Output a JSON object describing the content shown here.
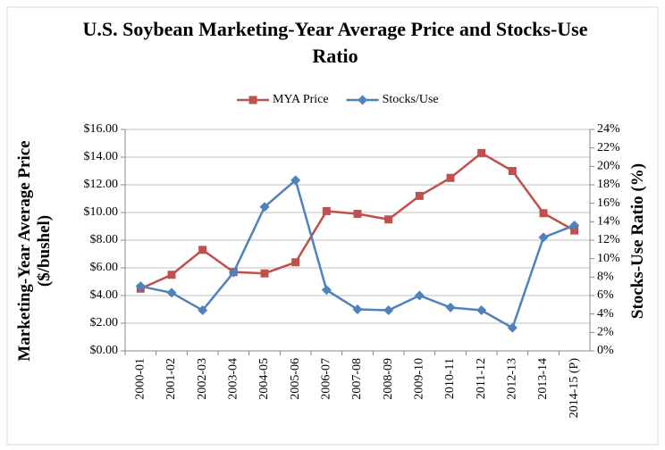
{
  "chart_data": {
    "type": "line",
    "title": "U.S. Soybean Marketing-Year Average Price and Stocks-Use Ratio",
    "y_label": "Marketing-Year Average Price ($/bushel)",
    "y2_label": "Stocks-Use Ratio (%)",
    "categories": [
      "2000-01",
      "2001-02",
      "2002-03",
      "2003-04",
      "2004-05",
      "2005-06",
      "2006-07",
      "2007-08",
      "2008-09",
      "2009-10",
      "2010-11",
      "2011-12",
      "2012-13",
      "2013-14",
      "2014-15 (P)"
    ],
    "series": [
      {
        "name": "MYA Price",
        "color": "#c0504d",
        "marker": "square",
        "values": [
          4.5,
          5.5,
          7.3,
          5.7,
          5.6,
          6.4,
          10.1,
          9.9,
          9.5,
          11.2,
          12.5,
          14.3,
          13.0,
          9.95,
          8.7
        ]
      },
      {
        "name": "Stocks/Use",
        "color": "#4f81bd",
        "marker": "diamond",
        "axis": "y2",
        "values": [
          7.0,
          6.3,
          4.4,
          8.5,
          15.6,
          18.5,
          6.6,
          4.5,
          4.4,
          6.0,
          4.7,
          4.4,
          2.5,
          12.3,
          13.6
        ]
      }
    ],
    "ylim": [
      0,
      16
    ],
    "yticks": [
      {
        "value": 0,
        "label": "$0.00"
      },
      {
        "value": 2,
        "label": "$2.00"
      },
      {
        "value": 4,
        "label": "$4.00"
      },
      {
        "value": 6,
        "label": "$6.00"
      },
      {
        "value": 8,
        "label": "$8.00"
      },
      {
        "value": 10,
        "label": "$10.00"
      },
      {
        "value": 12,
        "label": "$12.00"
      },
      {
        "value": 14,
        "label": "$14.00"
      },
      {
        "value": 16,
        "label": "$16.00"
      }
    ],
    "y2lim": [
      0,
      24
    ],
    "y2ticks": [
      {
        "value": 0,
        "label": "0%"
      },
      {
        "value": 2,
        "label": "2%"
      },
      {
        "value": 4,
        "label": "4%"
      },
      {
        "value": 6,
        "label": "6%"
      },
      {
        "value": 8,
        "label": "8%"
      },
      {
        "value": 10,
        "label": "10%"
      },
      {
        "value": 12,
        "label": "12%"
      },
      {
        "value": 14,
        "label": "14%"
      },
      {
        "value": 16,
        "label": "16%"
      },
      {
        "value": 18,
        "label": "18%"
      },
      {
        "value": 20,
        "label": "20%"
      },
      {
        "value": 22,
        "label": "22%"
      },
      {
        "value": 24,
        "label": "24%"
      }
    ],
    "grid": true,
    "legend": "top"
  }
}
